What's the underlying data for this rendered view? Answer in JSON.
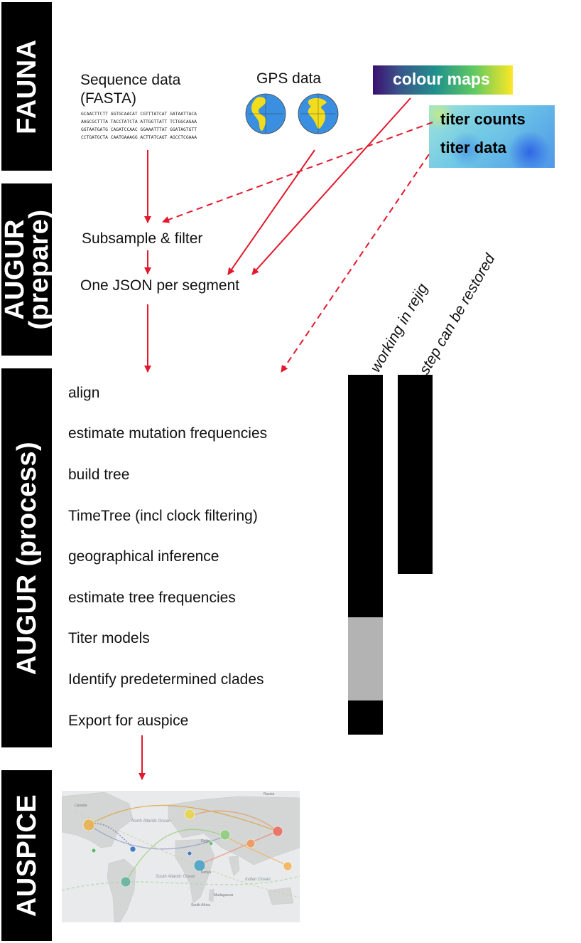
{
  "stages": [
    {
      "id": "fauna",
      "label": "FAUNA"
    },
    {
      "id": "augur-prepare",
      "line1": "AUGUR",
      "line2": "(prepare)"
    },
    {
      "id": "augur-process",
      "label": "AUGUR (process)"
    },
    {
      "id": "auspice",
      "label": "AUSPICE"
    }
  ],
  "inputs": {
    "sequence_line1": "Sequence  data",
    "sequence_line2": "(FASTA)",
    "sequence_sample": [
      "GCAACTTCTT GGTGCAACAT CGTTTATCAT GATAATTACA",
      "AAGCGCTTTA TACCTATCTA ATTGGTTATT TCTGGCAGAA",
      "GGTAATGATG CAGATCCAAC GGAAATTTAT GGATAGTGTT",
      "CCTGATGCTA CAATGAAAGG ACTTATCAGT AGCCTCGAAA"
    ],
    "gps": "GPS data",
    "colour_maps": "colour maps",
    "titer_counts": "titer counts",
    "titer_data": "titer data"
  },
  "prepare_steps": [
    "Subsample & filter",
    "One JSON per segment"
  ],
  "process_steps": [
    "align",
    "estimate mutation frequencies",
    "build tree",
    "TimeTree (incl clock filtering)",
    "geographical inference",
    "estimate tree frequencies",
    "Titer models",
    "Identify predetermined clades",
    "Export for auspice"
  ],
  "columns": {
    "working": "working in rejig",
    "restorable": "step can be restored"
  },
  "column_status": {
    "working": [
      "yes",
      "yes",
      "yes",
      "yes",
      "yes",
      "yes",
      "partial",
      "partial",
      "yes"
    ],
    "restorable": [
      "yes",
      "yes",
      "yes",
      "yes",
      "yes",
      "no",
      "no",
      "no",
      "no"
    ]
  },
  "colors": {
    "arrow": "#e3182d",
    "stage": "#000000",
    "partial": "#b3b3b3",
    "text_white": "#ffffff"
  },
  "map_labels": [
    "North Atlantic Ocean",
    "South Atlantic Ocean",
    "Indian Ocean",
    "Russia",
    "Canada",
    "Egypt",
    "Kenya",
    "Madagascar",
    "South Africa"
  ]
}
